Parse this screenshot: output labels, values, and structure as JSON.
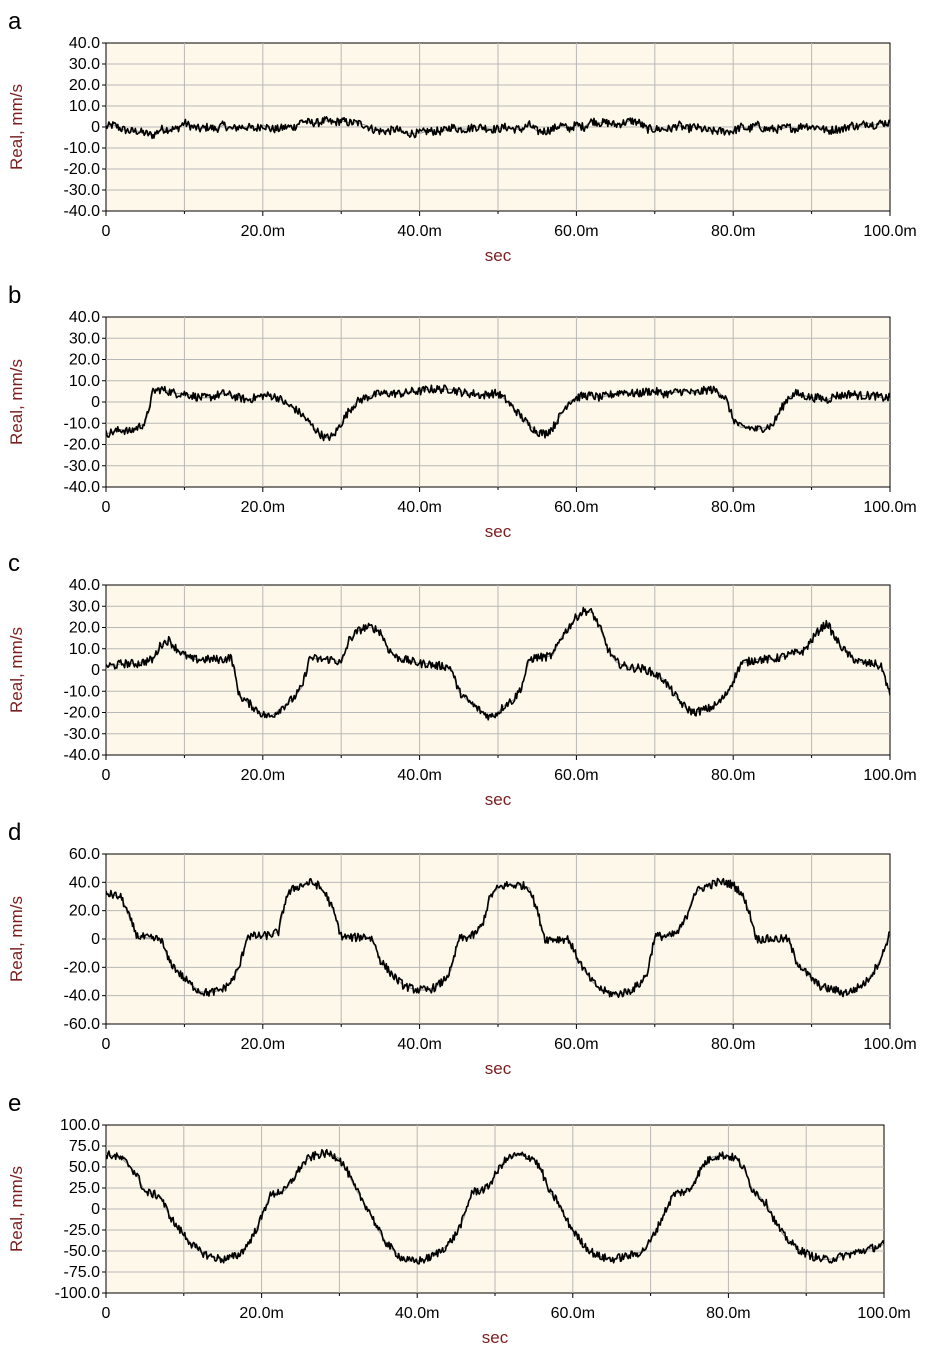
{
  "chart_data": [
    {
      "type": "line",
      "panel_label": "a",
      "xlabel": "sec",
      "ylabel": "Real, mm/s",
      "xlim": [
        0,
        100
      ],
      "ylim": [
        -40,
        40
      ],
      "x_ticks": [
        "0",
        "20.0m",
        "40.0m",
        "60.0m",
        "80.0m",
        "100.0m"
      ],
      "y_ticks": [
        "40.0",
        "30.0",
        "20.0",
        "10.0",
        "0",
        "-10.0",
        "-20.0",
        "-30.0",
        "-40.0"
      ],
      "grid": true,
      "series": [
        {
          "values": [
            0,
            1,
            -1,
            -2,
            -2,
            -3,
            -4,
            -1,
            -1,
            -1,
            2,
            0,
            -1,
            0,
            -1,
            1,
            -1,
            0,
            0,
            -1,
            1,
            -1,
            -1,
            0,
            0,
            3,
            2,
            2,
            3,
            2,
            3,
            2,
            2,
            1,
            -1,
            -2,
            -2,
            -1,
            -3,
            -3,
            -3,
            -2,
            -2,
            -2,
            0,
            -1,
            -1,
            0,
            0,
            -1,
            -1,
            0,
            -1,
            -1,
            1,
            -2,
            -2,
            -1,
            1,
            -1,
            1,
            0,
            3,
            2,
            2,
            1,
            2,
            3,
            2,
            -1,
            -1,
            -1,
            -1,
            1,
            -1,
            0,
            -1,
            -2,
            -2,
            -2,
            -2,
            0,
            -1,
            1,
            -1,
            -1,
            -1,
            0,
            -1,
            1,
            0,
            0,
            -2,
            -1,
            -1,
            1,
            0,
            2,
            1,
            2,
            2
          ]
        }
      ]
    },
    {
      "type": "line",
      "panel_label": "b",
      "xlabel": "sec",
      "ylabel": "Real, mm/s",
      "xlim": [
        0,
        100
      ],
      "ylim": [
        -40,
        40
      ],
      "x_ticks": [
        "0",
        "20.0m",
        "40.0m",
        "60.0m",
        "80.0m",
        "100.0m"
      ],
      "y_ticks": [
        "40.0",
        "30.0",
        "20.0",
        "10.0",
        "0",
        "-10.0",
        "-20.0",
        "-30.0",
        "-40.0"
      ],
      "grid": true,
      "series": [
        {
          "values": [
            -15,
            -14,
            -13,
            -14,
            -12,
            -10,
            5,
            6,
            5,
            4,
            4,
            3,
            2,
            2,
            3,
            4,
            3,
            2,
            1,
            2,
            3,
            3,
            2,
            -1,
            -3,
            -6,
            -10,
            -14,
            -17,
            -16,
            -10,
            -4,
            0,
            2,
            3,
            4,
            4,
            4,
            4,
            5,
            5,
            6,
            6,
            6,
            6,
            5,
            4,
            4,
            3,
            4,
            4,
            1,
            -3,
            -7,
            -11,
            -14,
            -15,
            -12,
            -6,
            0,
            2,
            3,
            3,
            2,
            3,
            4,
            5,
            4,
            4,
            5,
            5,
            4,
            4,
            5,
            5,
            4,
            5,
            6,
            5,
            2,
            -8,
            -12,
            -12,
            -13,
            -12,
            -11,
            -4,
            2,
            4,
            3,
            2,
            2,
            1,
            3,
            3,
            4,
            3,
            3,
            3,
            2,
            2
          ]
        }
      ]
    },
    {
      "type": "line",
      "panel_label": "c",
      "xlabel": "sec",
      "ylabel": "Real, mm/s",
      "xlim": [
        0,
        100
      ],
      "ylim": [
        -40,
        40
      ],
      "x_ticks": [
        "0",
        "20.0m",
        "40.0m",
        "60.0m",
        "80.0m",
        "100.0m"
      ],
      "y_ticks": [
        "40.0",
        "30.0",
        "20.0",
        "10.0",
        "0",
        "-10.0",
        "-20.0",
        "-30.0",
        "-40.0"
      ],
      "grid": true,
      "series": [
        {
          "values": [
            2,
            2,
            3,
            3,
            3,
            4,
            5,
            12,
            14,
            10,
            7,
            5,
            5,
            5,
            5,
            5,
            6,
            -12,
            -15,
            -18,
            -21,
            -22,
            -19,
            -16,
            -13,
            -8,
            6,
            5,
            5,
            5,
            3,
            14,
            18,
            20,
            20,
            18,
            10,
            6,
            5,
            4,
            3,
            3,
            2,
            2,
            1,
            -10,
            -14,
            -17,
            -20,
            -22,
            -20,
            -16,
            -14,
            -8,
            5,
            6,
            6,
            7,
            15,
            20,
            25,
            28,
            27,
            20,
            10,
            4,
            2,
            1,
            1,
            0,
            -2,
            -4,
            -9,
            -14,
            -18,
            -20,
            -19,
            -18,
            -16,
            -12,
            -5,
            3,
            4,
            5,
            5,
            5,
            6,
            7,
            8,
            9,
            14,
            19,
            22,
            15,
            10,
            6,
            4,
            3,
            3,
            1,
            -12
          ]
        }
      ]
    },
    {
      "type": "line",
      "panel_label": "d",
      "xlabel": "sec",
      "ylabel": "Real, mm/s",
      "xlim": [
        0,
        100
      ],
      "ylim": [
        -60,
        60
      ],
      "x_ticks": [
        "0",
        "20.0m",
        "40.0m",
        "60.0m",
        "80.0m",
        "100.0m"
      ],
      "y_ticks": [
        "60.0",
        "40.0",
        "20.0",
        "0",
        "-20.0",
        "-40.0",
        "-60.0"
      ],
      "grid": true,
      "series": [
        {
          "values": [
            32,
            31,
            29,
            15,
            2,
            1,
            0,
            0,
            -15,
            -22,
            -28,
            -33,
            -37,
            -38,
            -37,
            -35,
            -30,
            -20,
            2,
            2,
            2,
            3,
            5,
            30,
            36,
            38,
            40,
            38,
            32,
            20,
            2,
            1,
            1,
            2,
            0,
            -15,
            -22,
            -28,
            -33,
            -35,
            -36,
            -36,
            -34,
            -30,
            -22,
            0,
            1,
            3,
            10,
            30,
            36,
            38,
            38,
            38,
            36,
            20,
            0,
            0,
            0,
            0,
            -12,
            -22,
            -30,
            -35,
            -38,
            -39,
            -38,
            -36,
            -32,
            -25,
            2,
            2,
            2,
            5,
            15,
            32,
            36,
            38,
            40,
            40,
            38,
            33,
            20,
            0,
            0,
            0,
            0,
            0,
            -15,
            -22,
            -28,
            -33,
            -35,
            -36,
            -38,
            -37,
            -34,
            -30,
            -22,
            -12,
            5
          ]
        }
      ]
    },
    {
      "type": "line",
      "panel_label": "e",
      "xlabel": "sec",
      "ylabel": "Real, mm/s",
      "xlim": [
        0,
        100
      ],
      "ylim": [
        -100,
        100
      ],
      "x_ticks": [
        "0",
        "20.0m",
        "40.0m",
        "60.0m",
        "80.0m",
        "100.0m"
      ],
      "y_ticks": [
        "100.0",
        "75.0",
        "50.0",
        "25.0",
        "0",
        "-25.0",
        "-50.0",
        "-75.0",
        "-100.0"
      ],
      "grid": true,
      "series": [
        {
          "values": [
            65,
            63,
            60,
            52,
            40,
            20,
            18,
            15,
            -5,
            -20,
            -30,
            -42,
            -50,
            -55,
            -58,
            -60,
            -58,
            -55,
            -45,
            -30,
            -10,
            15,
            20,
            22,
            35,
            50,
            60,
            64,
            66,
            65,
            60,
            45,
            25,
            10,
            -5,
            -25,
            -40,
            -50,
            -58,
            -62,
            -62,
            -60,
            -56,
            -50,
            -42,
            -30,
            -10,
            20,
            22,
            25,
            40,
            55,
            62,
            64,
            63,
            60,
            45,
            20,
            10,
            -10,
            -25,
            -38,
            -48,
            -55,
            -58,
            -60,
            -58,
            -56,
            -54,
            -50,
            -38,
            -20,
            0,
            18,
            20,
            22,
            40,
            55,
            62,
            64,
            63,
            60,
            48,
            25,
            15,
            5,
            -15,
            -30,
            -40,
            -48,
            -53,
            -57,
            -60,
            -60,
            -58,
            -55,
            -53,
            -50,
            -48,
            -45,
            -42
          ]
        }
      ]
    }
  ]
}
